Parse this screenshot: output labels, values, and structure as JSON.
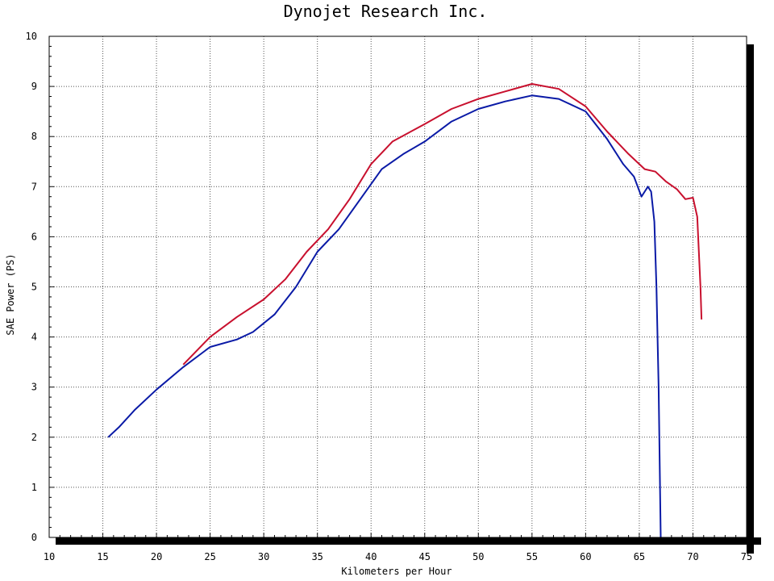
{
  "chart_data": {
    "type": "line",
    "title": "Dynojet Research Inc.",
    "xlabel": "Kilometers per Hour",
    "ylabel": "SAE Power (PS)",
    "xlim": [
      10,
      75
    ],
    "ylim": [
      0,
      10
    ],
    "xticks": [
      10,
      15,
      20,
      25,
      30,
      35,
      40,
      45,
      50,
      55,
      60,
      65,
      70,
      75
    ],
    "yticks": [
      0,
      1,
      2,
      3,
      4,
      5,
      6,
      7,
      8,
      9,
      10
    ],
    "grid": true,
    "series": [
      {
        "color": "#c8102e",
        "points": [
          [
            22.5,
            3.45
          ],
          [
            25,
            4.0
          ],
          [
            27.5,
            4.4
          ],
          [
            30,
            4.75
          ],
          [
            32,
            5.15
          ],
          [
            34,
            5.7
          ],
          [
            36,
            6.15
          ],
          [
            38,
            6.75
          ],
          [
            40,
            7.45
          ],
          [
            42,
            7.9
          ],
          [
            45,
            8.25
          ],
          [
            47.5,
            8.55
          ],
          [
            50,
            8.75
          ],
          [
            52.5,
            8.9
          ],
          [
            55,
            9.05
          ],
          [
            57.5,
            8.95
          ],
          [
            60,
            8.6
          ],
          [
            62,
            8.1
          ],
          [
            64,
            7.65
          ],
          [
            65.5,
            7.35
          ],
          [
            66.5,
            7.3
          ],
          [
            67.5,
            7.1
          ],
          [
            68.5,
            6.95
          ],
          [
            69.3,
            6.75
          ],
          [
            70,
            6.78
          ],
          [
            70.4,
            6.4
          ],
          [
            70.7,
            5.0
          ],
          [
            70.8,
            4.35
          ]
        ]
      },
      {
        "color": "#0a1aa6",
        "points": [
          [
            15.5,
            2.0
          ],
          [
            16.5,
            2.2
          ],
          [
            18,
            2.55
          ],
          [
            20,
            2.95
          ],
          [
            22.5,
            3.4
          ],
          [
            25,
            3.8
          ],
          [
            27.5,
            3.95
          ],
          [
            29,
            4.1
          ],
          [
            31,
            4.45
          ],
          [
            33,
            5.0
          ],
          [
            35,
            5.7
          ],
          [
            37,
            6.15
          ],
          [
            39,
            6.75
          ],
          [
            41,
            7.35
          ],
          [
            43,
            7.65
          ],
          [
            45,
            7.9
          ],
          [
            47.5,
            8.3
          ],
          [
            50,
            8.55
          ],
          [
            52.5,
            8.7
          ],
          [
            55,
            8.82
          ],
          [
            57.5,
            8.75
          ],
          [
            60,
            8.5
          ],
          [
            62,
            7.95
          ],
          [
            63.5,
            7.45
          ],
          [
            64.5,
            7.2
          ],
          [
            65.2,
            6.8
          ],
          [
            65.5,
            6.9
          ],
          [
            65.8,
            7.0
          ],
          [
            66.1,
            6.9
          ],
          [
            66.4,
            6.3
          ],
          [
            66.6,
            5.0
          ],
          [
            66.8,
            3.0
          ],
          [
            66.9,
            1.5
          ],
          [
            67.0,
            0.0
          ]
        ]
      }
    ]
  }
}
